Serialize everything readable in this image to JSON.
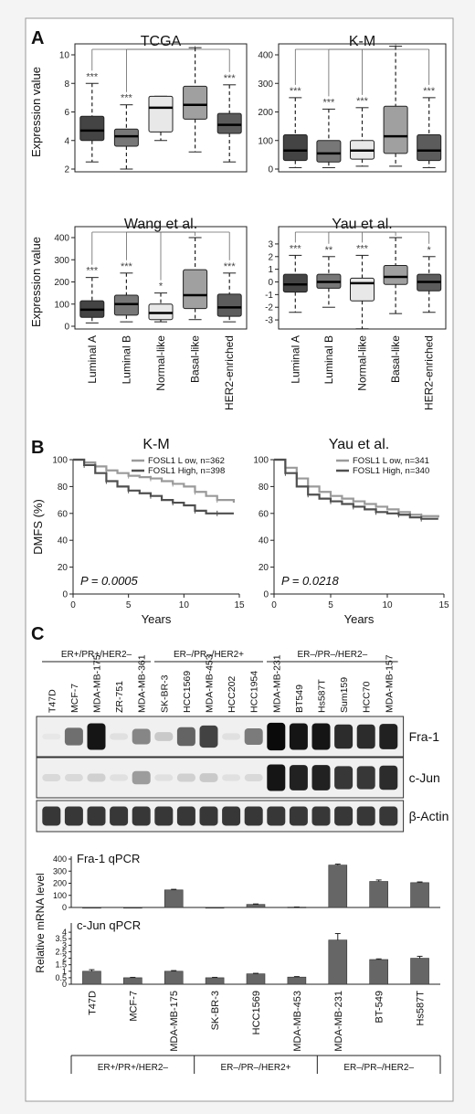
{
  "figure": {
    "panels": {
      "a": "A",
      "b": "B",
      "c": "C"
    }
  },
  "panel_a": {
    "ylabel": "Expression value",
    "categories": [
      "Luminal A",
      "Luminal B",
      "Normal-like",
      "Basal-like",
      "HER2-enriched"
    ],
    "box_colors": [
      "#444444",
      "#777777",
      "#e8e8e8",
      "#a0a0a0",
      "#5c5c5c"
    ],
    "plots": [
      {
        "title": "TCGA",
        "ylim": [
          2,
          10
        ],
        "yticks": [
          2,
          4,
          6,
          8,
          10
        ],
        "boxes": [
          {
            "min": 2.5,
            "q1": 4.0,
            "median": 4.7,
            "q3": 5.7,
            "max": 8.0
          },
          {
            "min": 2.0,
            "q1": 3.6,
            "median": 4.3,
            "q3": 4.8,
            "max": 6.5
          },
          {
            "min": 4.0,
            "q1": 4.6,
            "median": 6.3,
            "q3": 7.1,
            "max": 7.1
          },
          {
            "min": 3.2,
            "q1": 5.5,
            "median": 6.5,
            "q3": 7.8,
            "max": 10.5
          },
          {
            "min": 2.5,
            "q1": 4.5,
            "median": 5.1,
            "q3": 5.9,
            "max": 7.9
          }
        ],
        "sig": [
          "***",
          "***",
          "",
          "",
          "***"
        ]
      },
      {
        "title": "K-M",
        "ylim": [
          0,
          400
        ],
        "yticks": [
          0,
          100,
          200,
          300,
          400
        ],
        "boxes": [
          {
            "min": 5,
            "q1": 30,
            "median": 65,
            "q3": 120,
            "max": 250
          },
          {
            "min": 5,
            "q1": 25,
            "median": 55,
            "q3": 100,
            "max": 210
          },
          {
            "min": 10,
            "q1": 35,
            "median": 65,
            "q3": 100,
            "max": 215
          },
          {
            "min": 10,
            "q1": 55,
            "median": 115,
            "q3": 220,
            "max": 430
          },
          {
            "min": 5,
            "q1": 30,
            "median": 65,
            "q3": 120,
            "max": 250
          }
        ],
        "sig": [
          "***",
          "***",
          "***",
          "",
          "***"
        ]
      },
      {
        "title": "Wang et al.",
        "ylim": [
          0,
          400
        ],
        "yticks": [
          0,
          100,
          200,
          300,
          400
        ],
        "boxes": [
          {
            "min": 15,
            "q1": 40,
            "median": 75,
            "q3": 115,
            "max": 220
          },
          {
            "min": 20,
            "q1": 50,
            "median": 100,
            "q3": 140,
            "max": 240
          },
          {
            "min": 20,
            "q1": 30,
            "median": 60,
            "q3": 100,
            "max": 150
          },
          {
            "min": 30,
            "q1": 80,
            "median": 140,
            "q3": 255,
            "max": 400
          },
          {
            "min": 20,
            "q1": 45,
            "median": 85,
            "q3": 145,
            "max": 240
          }
        ],
        "sig": [
          "***",
          "***",
          "*",
          "",
          "***"
        ]
      },
      {
        "title": "Yau et al.",
        "ylim": [
          -3.5,
          3.5
        ],
        "yticks": [
          -3,
          -2,
          -1,
          0,
          1,
          2,
          3
        ],
        "boxes": [
          {
            "min": -2.4,
            "q1": -0.8,
            "median": -0.2,
            "q3": 0.6,
            "max": 2.1
          },
          {
            "min": -2.0,
            "q1": -0.5,
            "median": 0.0,
            "q3": 0.6,
            "max": 2.0
          },
          {
            "min": -3.7,
            "q1": -1.5,
            "median": -0.1,
            "q3": 0.3,
            "max": 2.1
          },
          {
            "min": -2.5,
            "q1": -0.2,
            "median": 0.4,
            "q3": 1.3,
            "max": 3.5
          },
          {
            "min": -2.4,
            "q1": -0.7,
            "median": 0.0,
            "q3": 0.6,
            "max": 2.0
          }
        ],
        "sig": [
          "***",
          "**",
          "***",
          "",
          "*"
        ]
      }
    ]
  },
  "panel_b": {
    "ylabel": "DMFS (%)",
    "xlabel": "Years",
    "xticks": [
      0,
      5,
      10,
      15
    ],
    "yticks": [
      0,
      20,
      40,
      60,
      80,
      100
    ],
    "plots": [
      {
        "title": "K-M",
        "pvalue": "P = 0.0005",
        "legend": [
          "FOSL1 L    ow, n=362",
          "FOSL1 High, n=398"
        ],
        "series": [
          {
            "name": "FOSL1 Low",
            "color": "#9a9a9a",
            "x": [
              0,
              1,
              2,
              3,
              4,
              5,
              6,
              7,
              8,
              9,
              10,
              11,
              12,
              13,
              14.5
            ],
            "y": [
              100,
              98,
              95,
              92,
              90,
              88,
              87,
              86,
              84,
              82,
              80,
              76,
              73,
              70,
              68
            ]
          },
          {
            "name": "FOSL1 High",
            "color": "#4f4f4f",
            "x": [
              0,
              1,
              2,
              3,
              4,
              5,
              6,
              7,
              8,
              9,
              10,
              11,
              12,
              13,
              14.5
            ],
            "y": [
              100,
              96,
              90,
              84,
              80,
              77,
              75,
              73,
              70,
              68,
              66,
              62,
              60,
              60,
              60
            ]
          }
        ]
      },
      {
        "title": "Yau et al.",
        "pvalue": "P = 0.0218",
        "legend": [
          "FOSL1 L    ow, n=341",
          "FOSL1 High, n=340"
        ],
        "series": [
          {
            "name": "FOSL1 Low",
            "color": "#9a9a9a",
            "x": [
              0,
              1,
              2,
              3,
              4,
              5,
              6,
              7,
              8,
              9,
              10,
              11,
              12,
              13,
              14.5
            ],
            "y": [
              100,
              94,
              86,
              80,
              76,
              73,
              71,
              69,
              67,
              65,
              63,
              61,
              59,
              58,
              57
            ]
          },
          {
            "name": "FOSL1 High",
            "color": "#4f4f4f",
            "x": [
              0,
              1,
              2,
              3,
              4,
              5,
              6,
              7,
              8,
              9,
              10,
              11,
              12,
              13,
              14.5
            ],
            "y": [
              100,
              90,
              80,
              74,
              71,
              69,
              67,
              65,
              63,
              61,
              60,
              59,
              57,
              56,
              56
            ]
          }
        ]
      }
    ]
  },
  "panel_c": {
    "groups": [
      "ER+/PR+/HER2–",
      "ER–/PR–/HER2+",
      "ER–/PR–/HER2–"
    ],
    "lanes": [
      "T47D",
      "MCF-7",
      "MDA-MB-175",
      "ZR-751",
      "MDA-MB-361",
      "SK-BR-3",
      "HCC1569",
      "MDA-MB-453",
      "HCC202",
      "HCC1954",
      "MDA-MB-231",
      "BT549",
      "Hs587T",
      "Sum159",
      "HCC70",
      "MDA-MB-157"
    ],
    "blots": [
      "Fra-1",
      "c-Jun",
      "β-Actin"
    ],
    "band_intensity": {
      "Fra-1": [
        0.02,
        0.55,
        0.95,
        0.05,
        0.45,
        0.15,
        0.6,
        0.75,
        0.05,
        0.5,
        1.0,
        0.95,
        0.95,
        0.85,
        0.85,
        0.9
      ],
      "c-Jun": [
        0.08,
        0.08,
        0.12,
        0.05,
        0.35,
        0.05,
        0.12,
        0.15,
        0.05,
        0.08,
        0.95,
        0.9,
        0.9,
        0.8,
        0.8,
        0.85
      ],
      "β-Actin": [
        0.8,
        0.8,
        0.8,
        0.8,
        0.8,
        0.8,
        0.8,
        0.8,
        0.8,
        0.8,
        0.8,
        0.8,
        0.8,
        0.8,
        0.8,
        0.8
      ]
    },
    "ylabel": "Relative mRNA level",
    "qpcr_categories": [
      "T47D",
      "MCF-7",
      "MDA-MB-175",
      "SK-BR-3",
      "HCC1569",
      "MDA-MB-453",
      "MDA-MB-231",
      "BT-549",
      "Hs587T"
    ],
    "qpcr": [
      {
        "title": "Fra-1 qPCR",
        "ylim": [
          0,
          400
        ],
        "yticks": [
          0,
          100,
          200,
          300,
          400
        ],
        "values": [
          0,
          0,
          145,
          0,
          25,
          3,
          350,
          215,
          205
        ],
        "errors": [
          0,
          0,
          5,
          0,
          4,
          1,
          8,
          12,
          6
        ]
      },
      {
        "title": "c-Jun qPCR",
        "ylim": [
          0,
          4.5
        ],
        "yticks": [
          0,
          0.5,
          1,
          1.5,
          2,
          2.5,
          3,
          3.5,
          4
        ],
        "values": [
          1.0,
          0.5,
          1.0,
          0.5,
          0.8,
          0.55,
          3.4,
          1.9,
          2.0
        ],
        "errors": [
          0.12,
          0.03,
          0.05,
          0.03,
          0.04,
          0.04,
          0.5,
          0.05,
          0.15
        ]
      }
    ],
    "bottom_groups": [
      "ER+/PR+/HER2–",
      "ER–/PR–/HER2+",
      "ER–/PR–/HER2–"
    ]
  },
  "chart_data": [
    {
      "type": "box",
      "title": "TCGA",
      "ylabel": "Expression value",
      "categories": [
        "Luminal A",
        "Luminal B",
        "Normal-like",
        "Basal-like",
        "HER2-enriched"
      ],
      "values": [
        4.7,
        4.3,
        6.3,
        6.5,
        5.1
      ],
      "ylim": [
        2,
        10
      ]
    },
    {
      "type": "box",
      "title": "K-M",
      "categories": [
        "Luminal A",
        "Luminal B",
        "Normal-like",
        "Basal-like",
        "HER2-enriched"
      ],
      "values": [
        65,
        55,
        65,
        115,
        65
      ],
      "ylim": [
        0,
        400
      ]
    },
    {
      "type": "box",
      "title": "Wang et al.",
      "ylabel": "Expression value",
      "categories": [
        "Luminal A",
        "Luminal B",
        "Normal-like",
        "Basal-like",
        "HER2-enriched"
      ],
      "values": [
        75,
        100,
        60,
        140,
        85
      ],
      "ylim": [
        0,
        400
      ]
    },
    {
      "type": "box",
      "title": "Yau et al.",
      "categories": [
        "Luminal A",
        "Luminal B",
        "Normal-like",
        "Basal-like",
        "HER2-enriched"
      ],
      "values": [
        -0.2,
        0.0,
        -0.1,
        0.4,
        0.0
      ],
      "ylim": [
        -3.5,
        3.5
      ]
    },
    {
      "type": "line",
      "title": "K-M",
      "xlabel": "Years",
      "ylabel": "DMFS (%)",
      "series": [
        {
          "name": "FOSL1 Low",
          "x": [
            0,
            5,
            10,
            14.5
          ],
          "y": [
            100,
            88,
            80,
            68
          ]
        },
        {
          "name": "FOSL1 High",
          "x": [
            0,
            5,
            10,
            14.5
          ],
          "y": [
            100,
            77,
            66,
            60
          ]
        }
      ]
    },
    {
      "type": "line",
      "title": "Yau et al.",
      "xlabel": "Years",
      "series": [
        {
          "name": "FOSL1 Low",
          "x": [
            0,
            5,
            10,
            14.5
          ],
          "y": [
            100,
            73,
            63,
            57
          ]
        },
        {
          "name": "FOSL1 High",
          "x": [
            0,
            5,
            10,
            14.5
          ],
          "y": [
            100,
            69,
            60,
            56
          ]
        }
      ]
    },
    {
      "type": "bar",
      "title": "Fra-1 qPCR",
      "ylabel": "Relative mRNA level",
      "categories": [
        "T47D",
        "MCF-7",
        "MDA-MB-175",
        "SK-BR-3",
        "HCC1569",
        "MDA-MB-453",
        "MDA-MB-231",
        "BT-549",
        "Hs587T"
      ],
      "values": [
        0,
        0,
        145,
        0,
        25,
        3,
        350,
        215,
        205
      ],
      "ylim": [
        0,
        400
      ]
    },
    {
      "type": "bar",
      "title": "c-Jun qPCR",
      "categories": [
        "T47D",
        "MCF-7",
        "MDA-MB-175",
        "SK-BR-3",
        "HCC1569",
        "MDA-MB-453",
        "MDA-MB-231",
        "BT-549",
        "Hs587T"
      ],
      "values": [
        1.0,
        0.5,
        1.0,
        0.5,
        0.8,
        0.55,
        3.4,
        1.9,
        2.0
      ],
      "ylim": [
        0,
        4.5
      ]
    }
  ]
}
